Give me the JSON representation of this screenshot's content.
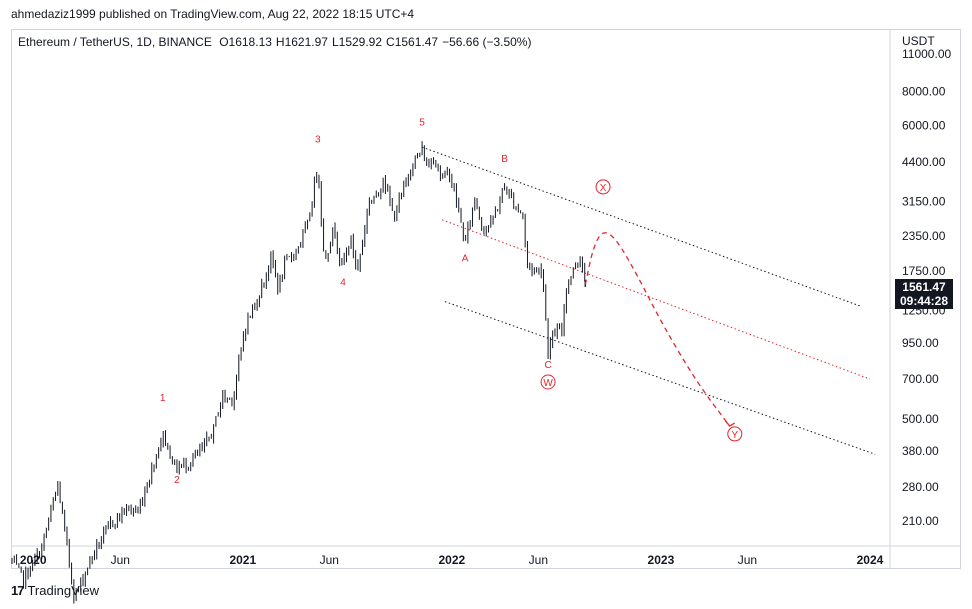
{
  "publisher_line": "ahmedaziz1999 published on TradingView.com, Aug 22, 2022 18:15 UTC+4",
  "legend": {
    "symbol": "Ethereum / TetherUS, 1D, BINANCE",
    "open": "O1618.13",
    "high": "H1621.97",
    "low": "L1529.92",
    "close": "C1561.47",
    "change": "−56.66 (−3.50%)"
  },
  "price_tag": {
    "price": "1561.47",
    "countdown": "09:44:28"
  },
  "footer": {
    "logo_text": "17",
    "brand": "TradingView"
  },
  "colors": {
    "candles": "#131722",
    "annotation": "#e0262e",
    "channel": "#131722",
    "axis_text": "#131722"
  },
  "chart_data": {
    "type": "candlestick",
    "title": "",
    "y_axis": {
      "unit_label": "USDT",
      "scale": "log",
      "ticks": [
        11000,
        8000,
        6000,
        4400,
        3150,
        2350,
        1750,
        1250,
        950,
        700,
        500,
        380,
        280,
        210
      ],
      "tick_labels": [
        "11000.00",
        "8000.00",
        "6000.00",
        "4400.00",
        "3150.00",
        "2350.00",
        "1750.00",
        "1250.00",
        "950.00",
        "700.00",
        "500.00",
        "380.00",
        "280.00",
        "210.00"
      ],
      "range": [
        170,
        13500
      ]
    },
    "x_axis": {
      "range": [
        "2019-11-25",
        "2024-02-05"
      ],
      "ticks": [
        {
          "date": "2020-01-01",
          "label": "2020",
          "bold": true
        },
        {
          "date": "2020-06-01",
          "label": "Jun",
          "bold": false
        },
        {
          "date": "2021-01-01",
          "label": "2021",
          "bold": true
        },
        {
          "date": "2021-06-01",
          "label": "Jun",
          "bold": false
        },
        {
          "date": "2022-01-01",
          "label": "2022",
          "bold": true
        },
        {
          "date": "2022-06-01",
          "label": "Jun",
          "bold": false
        },
        {
          "date": "2023-01-01",
          "label": "2023",
          "bold": true
        },
        {
          "date": "2023-06-01",
          "label": "Jun",
          "bold": false
        },
        {
          "date": "2024-01-01",
          "label": "2024",
          "bold": true
        }
      ]
    },
    "price_path": [
      [
        "2019-11-25",
        150
      ],
      [
        "2019-12-15",
        128
      ],
      [
        "2020-01-15",
        165
      ],
      [
        "2020-02-13",
        285
      ],
      [
        "2020-03-13",
        110
      ],
      [
        "2020-04-15",
        160
      ],
      [
        "2020-05-15",
        205
      ],
      [
        "2020-06-15",
        235
      ],
      [
        "2020-07-01",
        225
      ],
      [
        "2020-07-25",
        320
      ],
      [
        "2020-08-14",
        440
      ],
      [
        "2020-09-05",
        330
      ],
      [
        "2020-09-25",
        340
      ],
      [
        "2020-10-20",
        380
      ],
      [
        "2020-11-10",
        450
      ],
      [
        "2020-11-25",
        600
      ],
      [
        "2020-12-15",
        590
      ],
      [
        "2021-01-05",
        1100
      ],
      [
        "2021-01-25",
        1350
      ],
      [
        "2021-02-20",
        1950
      ],
      [
        "2021-03-05",
        1500
      ],
      [
        "2021-03-15",
        1850
      ],
      [
        "2021-04-05",
        2100
      ],
      [
        "2021-04-25",
        2600
      ],
      [
        "2021-05-12",
        4350
      ],
      [
        "2021-05-23",
        1900
      ],
      [
        "2021-06-10",
        2550
      ],
      [
        "2021-06-22",
        1800
      ],
      [
        "2021-07-08",
        2300
      ],
      [
        "2021-07-20",
        1750
      ],
      [
        "2021-08-10",
        3200
      ],
      [
        "2021-08-25",
        3300
      ],
      [
        "2021-09-03",
        3950
      ],
      [
        "2021-09-21",
        2750
      ],
      [
        "2021-10-10",
        3550
      ],
      [
        "2021-10-20",
        4200
      ],
      [
        "2021-11-10",
        4880
      ],
      [
        "2021-11-20",
        4200
      ],
      [
        "2021-12-01",
        4650
      ],
      [
        "2021-12-15",
        3800
      ],
      [
        "2021-12-27",
        4100
      ],
      [
        "2022-01-10",
        3100
      ],
      [
        "2022-01-24",
        2200
      ],
      [
        "2022-02-10",
        3250
      ],
      [
        "2022-02-24",
        2500
      ],
      [
        "2022-03-10",
        2600
      ],
      [
        "2022-03-20",
        2950
      ],
      [
        "2022-04-03",
        3580
      ],
      [
        "2022-04-20",
        3100
      ],
      [
        "2022-05-05",
        2800
      ],
      [
        "2022-05-12",
        1850
      ],
      [
        "2022-05-28",
        1750
      ],
      [
        "2022-06-08",
        1800
      ],
      [
        "2022-06-14",
        1150
      ],
      [
        "2022-06-18",
        900
      ],
      [
        "2022-07-01",
        1050
      ],
      [
        "2022-07-12",
        1050
      ],
      [
        "2022-07-20",
        1550
      ],
      [
        "2022-07-28",
        1700
      ],
      [
        "2022-08-14",
        2000
      ],
      [
        "2022-08-22",
        1561
      ]
    ],
    "projection": [
      [
        "2022-08-22",
        1561
      ],
      [
        "2022-09-05",
        2150
      ],
      [
        "2022-09-22",
        2480
      ],
      [
        "2022-10-15",
        2300
      ],
      [
        "2022-11-20",
        1700
      ],
      [
        "2023-01-05",
        1100
      ],
      [
        "2023-03-05",
        680
      ],
      [
        "2023-05-01",
        470
      ]
    ],
    "channels": [
      {
        "name": "upper",
        "style": "dotted",
        "color": "#131722",
        "from": [
          "2021-11-10",
          5000
        ],
        "to": [
          "2023-12-15",
          1300
        ]
      },
      {
        "name": "median",
        "style": "dotted",
        "color": "#e0262e",
        "from": [
          "2021-12-15",
          2700
        ],
        "to": [
          "2024-01-01",
          700
        ]
      },
      {
        "name": "lower",
        "style": "dotted",
        "color": "#131722",
        "from": [
          "2021-12-20",
          1350
        ],
        "to": [
          "2024-01-10",
          370
        ]
      }
    ],
    "wave_labels": [
      {
        "text": "1",
        "date": "2020-08-14",
        "price": 580,
        "circled": false
      },
      {
        "text": "2",
        "date": "2020-09-08",
        "price": 290,
        "circled": false
      },
      {
        "text": "3",
        "date": "2021-05-12",
        "price": 5200,
        "circled": false
      },
      {
        "text": "4",
        "date": "2021-06-25",
        "price": 1550,
        "circled": false
      },
      {
        "text": "5",
        "date": "2021-11-10",
        "price": 6000,
        "circled": false
      },
      {
        "text": "A",
        "date": "2022-01-24",
        "price": 1900,
        "circled": false
      },
      {
        "text": "B",
        "date": "2022-04-03",
        "price": 4400,
        "circled": false
      },
      {
        "text": "C",
        "date": "2022-06-18",
        "price": 770,
        "circled": false
      },
      {
        "text": "W",
        "date": "2022-06-18",
        "price": 660,
        "circled": true
      },
      {
        "text": "X",
        "date": "2022-09-22",
        "price": 3450,
        "circled": true
      },
      {
        "text": "Y",
        "date": "2023-05-10",
        "price": 425,
        "circled": true
      }
    ],
    "last_price": 1561.47
  }
}
